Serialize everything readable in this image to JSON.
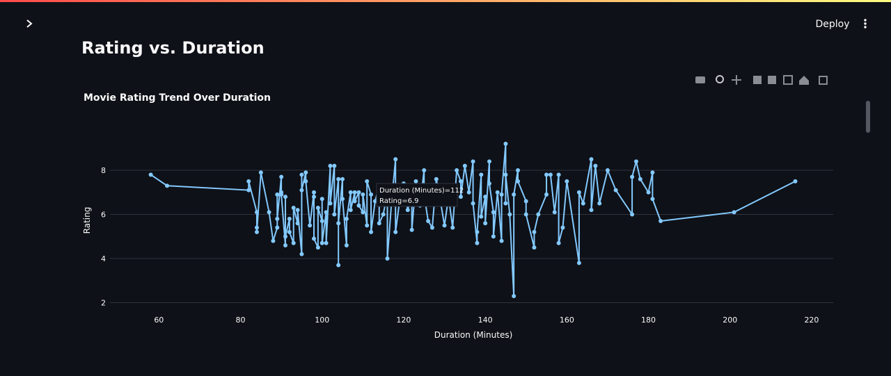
{
  "app": {
    "deploy": "Deploy",
    "page_title": "Rating vs. Duration"
  },
  "chart_data": {
    "type": "line",
    "title": "Movie Rating Trend Over Duration",
    "x_label": "Duration (Minutes)",
    "y_label": "Rating",
    "color": "#83c9ff",
    "grid": true,
    "xlim": [
      48,
      225.3
    ],
    "ylim": [
      1.7,
      9.67
    ],
    "xticks": [
      60,
      80,
      100,
      120,
      140,
      160,
      180,
      200,
      220
    ],
    "yticks": [
      2,
      4,
      6,
      8
    ],
    "tooltip": [
      "Duration (Minutes)=112",
      "Rating=6.9"
    ],
    "x": [
      58,
      62,
      82,
      82,
      84,
      84,
      84,
      85,
      87,
      88,
      89,
      89,
      89,
      90,
      90,
      90,
      91,
      91,
      91,
      92,
      92,
      93,
      93,
      94,
      94,
      95,
      95,
      95,
      96,
      96,
      97,
      98,
      98,
      98,
      99,
      99,
      100,
      100,
      100,
      101,
      101,
      102,
      102,
      103,
      103,
      104,
      104,
      104,
      105,
      105,
      106,
      106,
      107,
      107,
      108,
      108,
      109,
      109,
      110,
      110,
      111,
      111,
      112,
      112,
      113,
      114,
      114,
      115,
      116,
      116,
      117,
      118,
      118,
      119,
      120,
      121,
      122,
      122,
      123,
      124,
      125,
      125,
      126,
      127,
      128,
      129,
      130,
      131,
      132,
      133,
      134,
      134,
      135,
      136,
      137,
      137,
      138,
      138,
      139,
      139,
      140,
      140,
      141,
      141,
      142,
      142,
      143,
      144,
      144,
      145,
      145,
      145,
      146,
      147,
      147,
      148,
      148,
      150,
      150,
      152,
      152,
      153,
      155,
      155,
      156,
      157,
      158,
      158,
      159,
      160,
      163,
      163,
      164,
      166,
      166,
      167,
      168,
      170,
      172,
      176,
      176,
      177,
      178,
      180,
      181,
      181,
      183,
      201,
      216
    ],
    "values": [
      7.8,
      7.3,
      7.1,
      7.5,
      6.1,
      5.4,
      5.2,
      7.9,
      6.1,
      4.8,
      5.4,
      6.9,
      5.8,
      7.7,
      7.0,
      6.9,
      4.6,
      6.8,
      5.0,
      5.8,
      5.2,
      4.7,
      6.3,
      5.6,
      6.2,
      4.2,
      7.8,
      7.1,
      7.9,
      7.5,
      5.5,
      7.0,
      6.8,
      4.9,
      4.5,
      6.3,
      5.7,
      6.7,
      4.7,
      6.1,
      4.7,
      8.2,
      6.5,
      8.2,
      6.0,
      7.6,
      3.7,
      5.6,
      7.6,
      6.7,
      4.6,
      5.8,
      7.0,
      6.2,
      7.0,
      6.6,
      7.0,
      6.4,
      6.1,
      6.9,
      5.5,
      7.5,
      6.9,
      5.2,
      6.6,
      7.3,
      5.6,
      6.0,
      7.0,
      4.0,
      6.5,
      8.5,
      5.2,
      6.6,
      7.4,
      6.2,
      7.0,
      5.3,
      7.5,
      6.4,
      8.0,
      6.9,
      5.7,
      5.4,
      7.6,
      6.6,
      5.5,
      6.8,
      5.4,
      8.0,
      7.5,
      6.8,
      8.2,
      7.0,
      8.4,
      6.5,
      4.7,
      5.2,
      7.8,
      5.9,
      6.8,
      5.6,
      8.4,
      7.4,
      6.1,
      5.0,
      7.0,
      4.8,
      6.9,
      9.2,
      6.5,
      7.8,
      6.0,
      2.3,
      6.9,
      8.0,
      7.5,
      6.6,
      6.0,
      4.5,
      5.2,
      6.0,
      6.9,
      7.8,
      7.8,
      6.1,
      7.8,
      4.7,
      5.4,
      7.5,
      3.8,
      7.0,
      6.5,
      8.5,
      6.2,
      8.2,
      6.5,
      8.0,
      7.1,
      6.0,
      7.7,
      8.4,
      7.6,
      7.0,
      7.9,
      6.7,
      5.7,
      6.1,
      7.5
    ]
  }
}
